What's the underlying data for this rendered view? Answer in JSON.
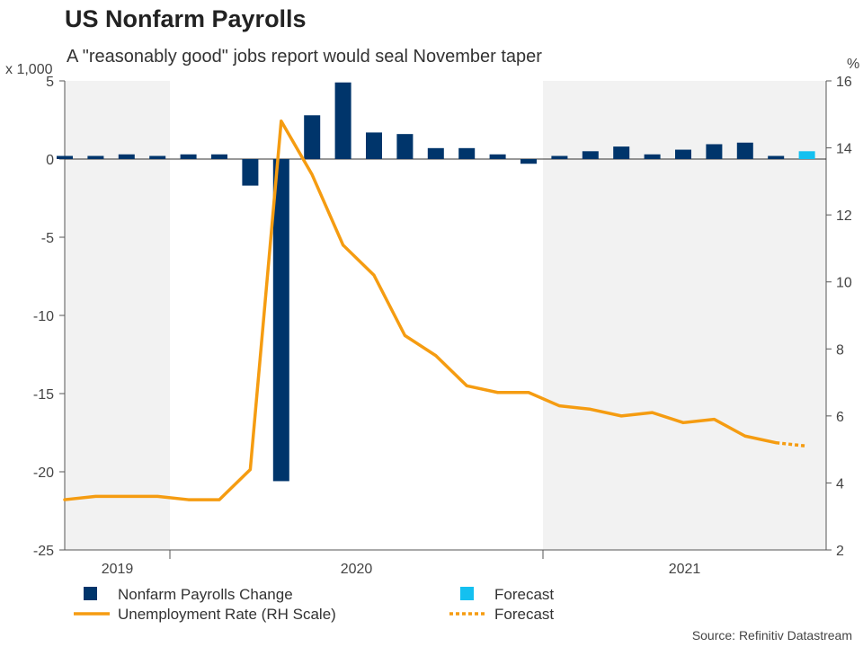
{
  "chart_data": {
    "type": "bar+line",
    "title": "US Nonfarm Payrolls",
    "subtitle": "A \"reasonably good\" jobs report would seal November taper",
    "source": "Source: Refinitiv Datastream",
    "left_axis": {
      "unit": "x 1,000",
      "range": [
        -25,
        5
      ],
      "ticks": [
        "5",
        "0",
        "-5",
        "-10",
        "-15",
        "-20",
        "-25"
      ],
      "tick_values": [
        5,
        0,
        -5,
        -10,
        -15,
        -20,
        -25
      ]
    },
    "right_axis": {
      "unit": "%",
      "range": [
        2,
        16
      ],
      "ticks": [
        "16",
        "14",
        "12",
        "10",
        "8",
        "6",
        "4",
        "2"
      ],
      "tick_values": [
        16,
        14,
        12,
        10,
        8,
        6,
        4,
        2
      ]
    },
    "year_labels": [
      "2019",
      "2020",
      "2021"
    ],
    "shaded_years": [
      "2019",
      "2021"
    ],
    "months": [
      "2019-08",
      "2019-09",
      "2019-10",
      "2019-11",
      "2019-12",
      "2020-01",
      "2020-02",
      "2020-03",
      "2020-04",
      "2020-05",
      "2020-06",
      "2020-07",
      "2020-08",
      "2020-09",
      "2020-10",
      "2020-11",
      "2020-12",
      "2021-01",
      "2021-02",
      "2021-03",
      "2021-04",
      "2021-05",
      "2021-06",
      "2021-07",
      "2021-08",
      "2021-09"
    ],
    "payrolls_change": [
      0.2,
      0.2,
      0.3,
      0.2,
      0.3,
      0.3,
      -1.7,
      -20.6,
      2.8,
      4.9,
      1.7,
      1.6,
      0.7,
      0.7,
      0.3,
      -0.3,
      0.2,
      0.5,
      0.8,
      0.3,
      0.6,
      0.95,
      1.05,
      0.2,
      null,
      null
    ],
    "payrolls_forecast": [
      null,
      null,
      null,
      null,
      null,
      null,
      null,
      null,
      null,
      null,
      null,
      null,
      null,
      null,
      null,
      null,
      null,
      null,
      null,
      null,
      null,
      null,
      null,
      null,
      0.5,
      null
    ],
    "unemployment_rate": [
      3.5,
      3.6,
      3.6,
      3.6,
      3.5,
      3.5,
      4.4,
      14.8,
      13.2,
      11.1,
      10.2,
      8.4,
      7.8,
      6.9,
      6.7,
      6.7,
      6.3,
      6.2,
      6.0,
      6.1,
      5.8,
      5.9,
      5.4,
      5.2,
      null,
      null
    ],
    "unemployment_forecast": [
      null,
      null,
      null,
      null,
      null,
      null,
      null,
      null,
      null,
      null,
      null,
      null,
      null,
      null,
      null,
      null,
      null,
      null,
      null,
      null,
      null,
      null,
      null,
      5.2,
      5.1,
      null
    ],
    "series": [
      {
        "name": "Nonfarm Payrolls Change",
        "kind": "bar",
        "color": "#00356b"
      },
      {
        "name": "Forecast",
        "kind": "bar",
        "color": "#14c0f0"
      },
      {
        "name": "Unemployment Rate (RH Scale)",
        "kind": "line",
        "color": "#f59c11"
      },
      {
        "name": "Forecast",
        "kind": "dotted-line",
        "color": "#f59c11"
      }
    ],
    "legend": [
      "Nonfarm Payrolls Change",
      "Forecast",
      "Unemployment Rate (RH Scale)",
      "Forecast"
    ],
    "grid": false
  },
  "colors": {
    "bar": "#00356b",
    "bar_forecast": "#14c0f0",
    "line": "#f59c11",
    "shade": "#f2f2f2",
    "axis": "#555555"
  }
}
